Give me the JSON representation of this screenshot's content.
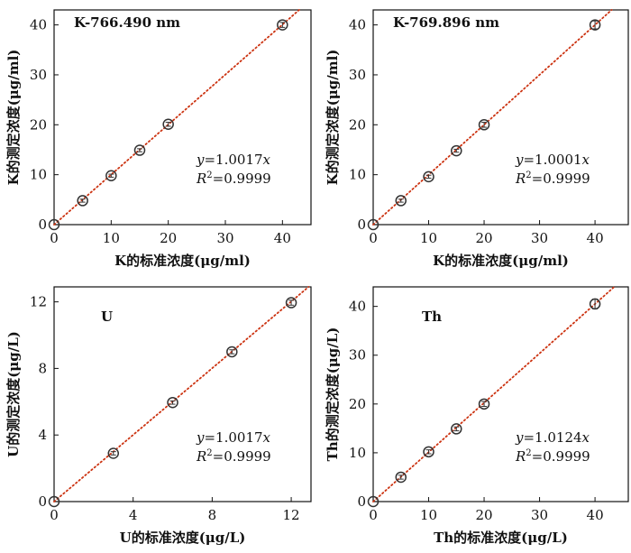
{
  "chart_data": [
    {
      "type": "scatter",
      "title": "K-766.490 nm",
      "xlabel": "K的标准浓度(μg/ml)",
      "ylabel": "K的测定浓度(μg/ml)",
      "xlim": [
        0,
        45
      ],
      "ylim": [
        0,
        43
      ],
      "xticks": [
        "0",
        "10",
        "20",
        "30",
        "40"
      ],
      "yticks": [
        "0",
        "10",
        "20",
        "30",
        "40"
      ],
      "points": [
        {
          "x": 0,
          "y": 0,
          "err": 0
        },
        {
          "x": 5,
          "y": 4.8,
          "err": 0.3
        },
        {
          "x": 10,
          "y": 9.8,
          "err": 0.3
        },
        {
          "x": 15,
          "y": 14.9,
          "err": 0.3
        },
        {
          "x": 20,
          "y": 20.1,
          "err": 0.4
        },
        {
          "x": 40,
          "y": 40.0,
          "err": 0.5
        }
      ],
      "fit_slope": 1.0017,
      "equation": {
        "y": "y",
        "eq": "=1.0017",
        "x": "x"
      },
      "r2": {
        "R": "R",
        "sup": "2",
        "value": "=0.9999"
      },
      "grid": false,
      "colors": {
        "marker": "#333333",
        "fit": "#cc3311",
        "axis": "#111111"
      }
    },
    {
      "type": "scatter",
      "title": "K-769.896 nm",
      "xlabel": "K的标准浓度(μg/ml)",
      "ylabel": "K的测定浓度(μg/ml)",
      "xlim": [
        0,
        46
      ],
      "ylim": [
        0,
        43
      ],
      "xticks": [
        "0",
        "10",
        "20",
        "30",
        "40"
      ],
      "yticks": [
        "0",
        "10",
        "20",
        "30",
        "40"
      ],
      "points": [
        {
          "x": 0,
          "y": 0,
          "err": 0
        },
        {
          "x": 5,
          "y": 4.8,
          "err": 0.3
        },
        {
          "x": 10,
          "y": 9.6,
          "err": 0.3
        },
        {
          "x": 15,
          "y": 14.8,
          "err": 0.3
        },
        {
          "x": 20,
          "y": 20.0,
          "err": 0.5
        },
        {
          "x": 40,
          "y": 40.0,
          "err": 0.8
        }
      ],
      "fit_slope": 1.0001,
      "equation": {
        "y": "y",
        "eq": "=1.0001",
        "x": "x"
      },
      "r2": {
        "R": "R",
        "sup": "2",
        "value": "=0.9999"
      },
      "grid": false,
      "colors": {
        "marker": "#333333",
        "fit": "#cc3311",
        "axis": "#111111"
      }
    },
    {
      "type": "scatter",
      "title": "U",
      "xlabel": "U的标准浓度(μg/L)",
      "ylabel": "U的测定浓度(μg/L)",
      "xlim": [
        0,
        13
      ],
      "ylim": [
        0,
        12.9
      ],
      "xticks": [
        "0",
        "4",
        "8",
        "12"
      ],
      "yticks": [
        "0",
        "4",
        "8",
        "12"
      ],
      "points": [
        {
          "x": 0,
          "y": 0,
          "err": 0
        },
        {
          "x": 3,
          "y": 2.9,
          "err": 0.1
        },
        {
          "x": 6,
          "y": 5.95,
          "err": 0.1
        },
        {
          "x": 9,
          "y": 9.0,
          "err": 0.12
        },
        {
          "x": 12,
          "y": 11.95,
          "err": 0.15
        }
      ],
      "fit_slope": 1.0017,
      "equation": {
        "y": "y",
        "eq": "=1.0017",
        "x": "x"
      },
      "r2": {
        "R": "R",
        "sup": "2",
        "value": "=0.9999"
      },
      "grid": false,
      "colors": {
        "marker": "#333333",
        "fit": "#cc3311",
        "axis": "#111111"
      }
    },
    {
      "type": "scatter",
      "title": "Th",
      "xlabel": "Th的标准浓度(μg/L)",
      "ylabel": "Th的测定浓度(μg/L)",
      "xlim": [
        0,
        46
      ],
      "ylim": [
        0,
        44
      ],
      "xticks": [
        "0",
        "10",
        "20",
        "30",
        "40"
      ],
      "yticks": [
        "0",
        "10",
        "20",
        "30",
        "40"
      ],
      "points": [
        {
          "x": 0,
          "y": 0,
          "err": 0
        },
        {
          "x": 5,
          "y": 5.0,
          "err": 0.4
        },
        {
          "x": 10,
          "y": 10.2,
          "err": 0.4
        },
        {
          "x": 15,
          "y": 14.9,
          "err": 0.4
        },
        {
          "x": 20,
          "y": 20.0,
          "err": 0.5
        },
        {
          "x": 40,
          "y": 40.5,
          "err": 1.0
        }
      ],
      "fit_slope": 1.0124,
      "equation": {
        "y": "y",
        "eq": "=1.0124",
        "x": "x"
      },
      "r2": {
        "R": "R",
        "sup": "2",
        "value": "=0.9999"
      },
      "grid": false,
      "colors": {
        "marker": "#333333",
        "fit": "#cc3311",
        "axis": "#111111"
      }
    }
  ]
}
